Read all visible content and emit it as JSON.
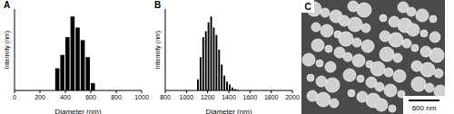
{
  "chart_data": [
    {
      "type": "histogram",
      "title": "A",
      "xlabel": "Diameter (nm)",
      "ylabel": "Intensity (nm)",
      "bins": [
        320,
        360,
        400,
        440,
        480,
        520,
        560,
        600,
        640
      ],
      "counts": [
        30,
        48,
        72,
        100,
        85,
        68,
        45,
        10
      ],
      "color": "#000000",
      "xlim": [
        0,
        1000
      ],
      "xticks": [
        0,
        200,
        400,
        600,
        800,
        1000
      ],
      "ylim": [
        0,
        110
      ],
      "tick_labels": "x"
    },
    {
      "type": "histogram",
      "title": "B",
      "xlabel": "Diameter (nm)",
      "ylabel": "Intensity (nm)",
      "bins": [
        1100,
        1125,
        1150,
        1175,
        1200,
        1225,
        1250,
        1275,
        1300,
        1325,
        1350,
        1375,
        1400,
        1425,
        1450,
        1475,
        1500
      ],
      "counts": [
        15,
        45,
        72,
        80,
        92,
        100,
        85,
        75,
        55,
        35,
        20,
        12,
        8,
        4,
        2,
        1
      ],
      "color": "#000000",
      "xlim": [
        800,
        2000
      ],
      "xticks": [
        800,
        1000,
        1200,
        1400,
        1600,
        1800,
        2000
      ],
      "ylim": [
        0,
        110
      ],
      "tick_labels": "x"
    },
    {
      "type": "image",
      "title": "C",
      "annotations": [
        "600 nm"
      ]
    }
  ]
}
